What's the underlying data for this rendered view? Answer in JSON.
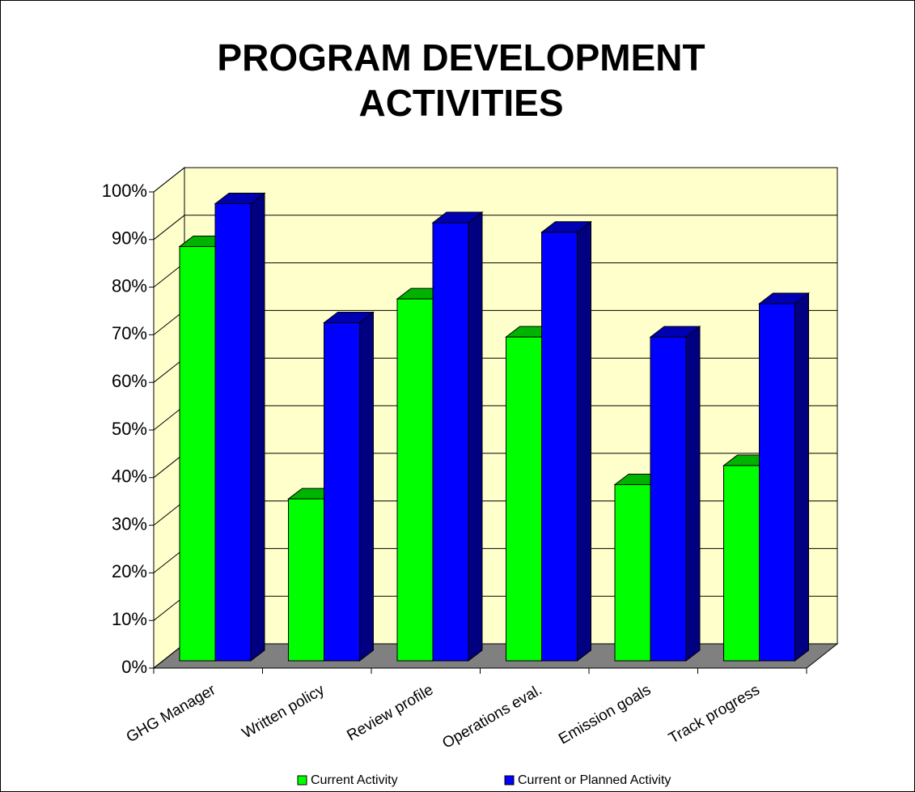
{
  "chart_data": {
    "type": "bar3d",
    "title": "PROGRAM DEVELOPMENT ACTIVITIES",
    "categories": [
      "GHG Manager",
      "Written policy",
      "Review profile",
      "Operations eval.",
      "Emission goals",
      "Track progress"
    ],
    "series": [
      {
        "name": "Current Activity",
        "color": "#00ff00",
        "values": [
          87,
          34,
          76,
          68,
          37,
          41
        ]
      },
      {
        "name": "Current or Planned Activity",
        "color": "#0000ff",
        "values": [
          96,
          71,
          92,
          90,
          68,
          75
        ]
      }
    ],
    "ylim": [
      0,
      100
    ],
    "yticks": [
      {
        "value": 0,
        "label": "0%"
      },
      {
        "value": 10,
        "label": "10%"
      },
      {
        "value": 20,
        "label": "20%"
      },
      {
        "value": 30,
        "label": "30%"
      },
      {
        "value": 40,
        "label": "40%"
      },
      {
        "value": 50,
        "label": "50%"
      },
      {
        "value": 60,
        "label": "60%"
      },
      {
        "value": 70,
        "label": "70%"
      },
      {
        "value": 80,
        "label": "80%"
      },
      {
        "value": 90,
        "label": "90%"
      },
      {
        "value": 100,
        "label": "100%"
      }
    ],
    "grid": true,
    "legend": "bottom"
  }
}
